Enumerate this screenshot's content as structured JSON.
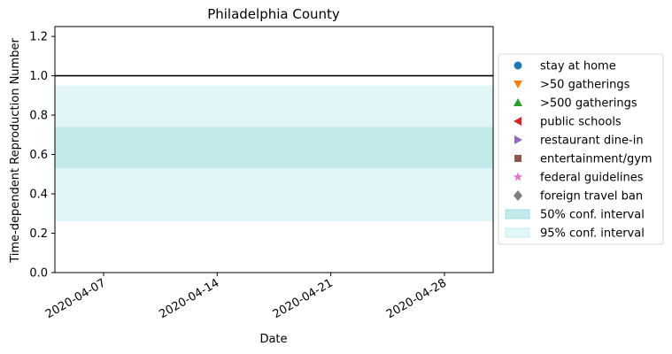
{
  "chart_data": {
    "type": "line",
    "title": "Philadelphia County",
    "xlabel": "Date",
    "ylabel": "Time-dependent Reproduction Number",
    "xlim": [
      "2020-04-04",
      "2020-05-01"
    ],
    "ylim": [
      0,
      1.25
    ],
    "x_ticks": [
      "2020-04-07",
      "2020-04-14",
      "2020-04-21",
      "2020-04-28"
    ],
    "y_ticks": [
      "0.0",
      "0.2",
      "0.4",
      "0.6",
      "0.8",
      "1.0",
      "1.2"
    ],
    "reference_line": {
      "y": 1.0,
      "color": "#000000"
    },
    "bands": [
      {
        "name": "95% conf. interval",
        "lower": 0.26,
        "upper": 0.95,
        "color": "#e0f6f7"
      },
      {
        "name": "50% conf. interval",
        "lower": 0.53,
        "upper": 0.74,
        "color": "#c2eaea"
      }
    ],
    "grid": false,
    "legend_position": "right, outside plot",
    "legend": [
      {
        "label": "stay at home",
        "marker": "circle",
        "color": "#1f77b4"
      },
      {
        "label": ">50 gatherings",
        "marker": "triangle-down",
        "color": "#ff7f0e"
      },
      {
        "label": ">500 gatherings",
        "marker": "triangle-up",
        "color": "#2ca02c"
      },
      {
        "label": "public schools",
        "marker": "triangle-left",
        "color": "#d62728"
      },
      {
        "label": "restaurant dine-in",
        "marker": "triangle-right",
        "color": "#9467bd"
      },
      {
        "label": "entertainment/gym",
        "marker": "square",
        "color": "#8c564b"
      },
      {
        "label": "federal guidelines",
        "marker": "star",
        "color": "#e377c2"
      },
      {
        "label": "foreign travel ban",
        "marker": "diamond",
        "color": "#7f7f7f"
      },
      {
        "label": "50% conf. interval",
        "marker": "patch",
        "color": "#c2eaea",
        "edge": "#9fdcdc"
      },
      {
        "label": "95% conf. interval",
        "marker": "patch",
        "color": "#e0f6f7",
        "edge": "#c9eef0"
      }
    ]
  }
}
